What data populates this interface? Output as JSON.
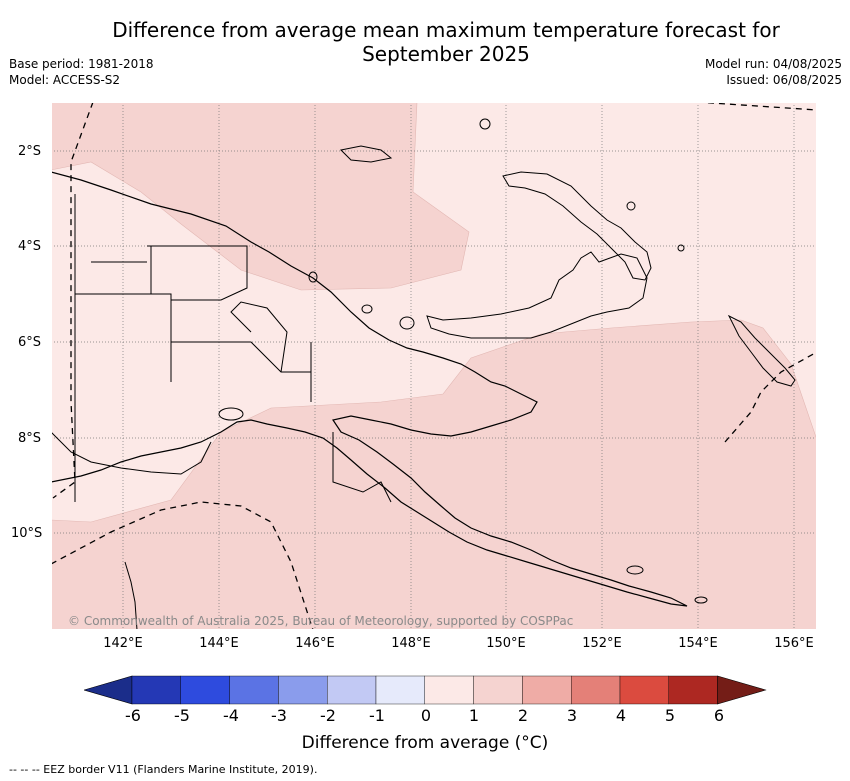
{
  "title": {
    "line1": "Difference from average mean maximum temperature forecast for",
    "line2": "September 2025"
  },
  "meta": {
    "base_period": "Base period: 1981-2018",
    "model": "Model: ACCESS-S2",
    "model_run": "Model run: 04/08/2025",
    "issued": "Issued: 06/08/2025"
  },
  "map": {
    "lat_labels": [
      "2°S",
      "4°S",
      "6°S",
      "8°S",
      "10°S"
    ],
    "lon_labels": [
      "142°E",
      "144°E",
      "146°E",
      "148°E",
      "150°E",
      "152°E",
      "154°E",
      "156°E"
    ],
    "copyright": "© Commonwealth of Australia 2025, Bureau of Meteorology, supported by COSPPac",
    "fill_colors": {
      "light": "#fce9e7",
      "medium": "#f5d3d0"
    }
  },
  "colorbar": {
    "ticks": [
      "-6",
      "-5",
      "-4",
      "-3",
      "-2",
      "-1",
      "0",
      "1",
      "2",
      "3",
      "4",
      "5",
      "6"
    ],
    "colors": [
      "#1b2d8a",
      "#2438b5",
      "#2e4bde",
      "#5b73e4",
      "#8a9cec",
      "#c2c9f4",
      "#e6eafb",
      "#fce9e7",
      "#f5d3d0",
      "#efaca6",
      "#e48078",
      "#db4b3f",
      "#ad2822",
      "#741d17"
    ],
    "label": "Difference from average (°C)"
  },
  "footer": "--  --  -- EEZ border V11 (Flanders Marine Institute, 2019)."
}
